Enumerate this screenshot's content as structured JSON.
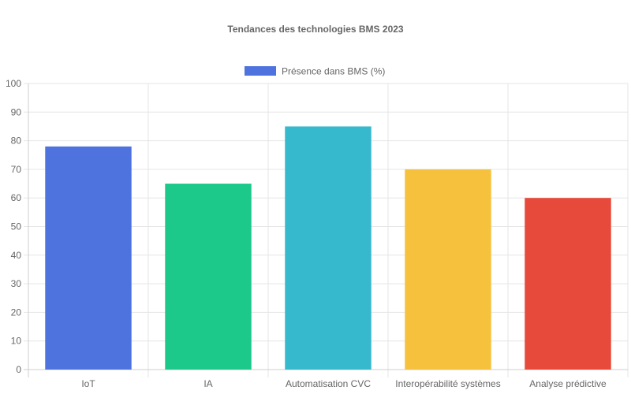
{
  "chart_data": {
    "type": "bar",
    "title": "Tendances des technologies BMS 2023",
    "categories": [
      "IoT",
      "IA",
      "Automatisation CVC",
      "Interopérabilité systèmes",
      "Analyse prédictive"
    ],
    "series": [
      {
        "name": "Présence dans BMS (%)",
        "values": [
          78,
          65,
          85,
          70,
          60
        ],
        "colors": [
          "#4e73df",
          "#1cc88a",
          "#36b9cc",
          "#f6c23e",
          "#e74a3b"
        ],
        "legend_color": "#4e73df"
      }
    ],
    "xlabel": "",
    "ylabel": "",
    "ylim": [
      0,
      100
    ],
    "yticks": [
      0,
      10,
      20,
      30,
      40,
      50,
      60,
      70,
      80,
      90,
      100
    ],
    "grid": true,
    "legend_position": "top-center"
  }
}
